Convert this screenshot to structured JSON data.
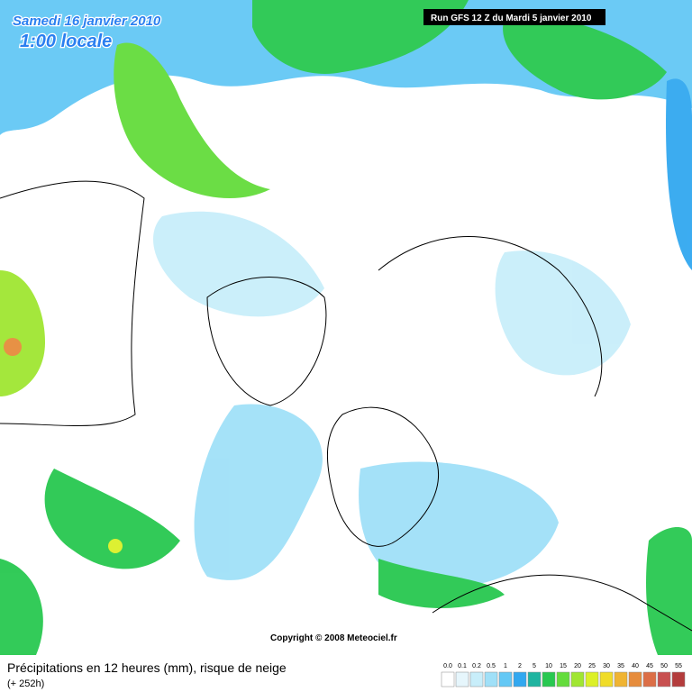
{
  "header": {
    "date": "Samedi 16 janvier 2010",
    "time": "1:00 locale",
    "run": "Run GFS 12 Z du Mardi 5 janvier 2010"
  },
  "copyright": "Copyright © 2008 Meteociel.fr",
  "footer": {
    "title": "Précipitations en 12 heures (mm), risque de neige",
    "lead": "(+ 252h)"
  },
  "legend": {
    "items": [
      {
        "label": "0.0",
        "color": "#ffffff"
      },
      {
        "label": "0.1",
        "color": "#e6f6fc"
      },
      {
        "label": "0.2",
        "color": "#c8eefa"
      },
      {
        "label": "0.5",
        "color": "#a0e0f8"
      },
      {
        "label": "1",
        "color": "#64c8f5"
      },
      {
        "label": "2",
        "color": "#32a8f0"
      },
      {
        "label": "5",
        "color": "#20b4a0"
      },
      {
        "label": "10",
        "color": "#28c850"
      },
      {
        "label": "15",
        "color": "#64dc3c"
      },
      {
        "label": "20",
        "color": "#a0e632"
      },
      {
        "label": "25",
        "color": "#dcf028"
      },
      {
        "label": "30",
        "color": "#f0dc28"
      },
      {
        "label": "35",
        "color": "#f0b432"
      },
      {
        "label": "40",
        "color": "#e68c3c"
      },
      {
        "label": "45",
        "color": "#dc6e46"
      },
      {
        "label": "50",
        "color": "#c85050"
      },
      {
        "label": "55",
        "color": "#b43c3c"
      }
    ]
  }
}
